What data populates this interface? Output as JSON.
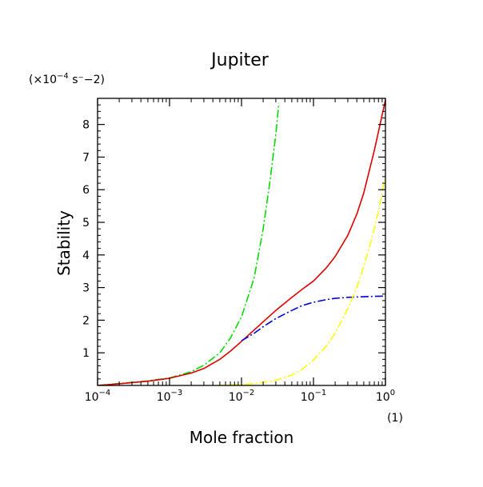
{
  "chart_data": {
    "type": "line",
    "title": "Jupiter",
    "xlabel": "Mole fraction",
    "ylabel": "Stability",
    "x_unit": "(1)",
    "y_unit": {
      "prefix": "(×10",
      "exponent": "−4",
      "suffix": " s⁻−2)"
    },
    "x_scale": "log",
    "xlim": [
      0.0001,
      1
    ],
    "ylim": [
      0,
      8.8
    ],
    "x_ticks": [
      {
        "base": "10",
        "exp": "−4",
        "value": 0.0001
      },
      {
        "base": "10",
        "exp": "−3",
        "value": 0.001
      },
      {
        "base": "10",
        "exp": "−2",
        "value": 0.01
      },
      {
        "base": "10",
        "exp": "−1",
        "value": 0.1
      },
      {
        "base": "10",
        "exp": "0",
        "value": 1
      }
    ],
    "y_ticks": [
      "1",
      "2",
      "3",
      "4",
      "5",
      "6",
      "7",
      "8"
    ],
    "grid": false,
    "series": [
      {
        "color": "#00dd00",
        "style": "dash-dot",
        "x": [
          0.0001,
          0.0002,
          0.0005,
          0.001,
          0.002,
          0.003,
          0.005,
          0.007,
          0.01,
          0.015,
          0.02,
          0.025,
          0.03,
          0.033
        ],
        "y": [
          0.0,
          0.06,
          0.14,
          0.23,
          0.42,
          0.62,
          1.0,
          1.45,
          2.1,
          3.3,
          4.8,
          6.3,
          7.7,
          8.65
        ]
      },
      {
        "color": "#dd0000",
        "style": "solid",
        "x": [
          0.0001,
          0.0002,
          0.0005,
          0.001,
          0.002,
          0.003,
          0.005,
          0.007,
          0.01,
          0.02,
          0.03,
          0.05,
          0.07,
          0.1,
          0.15,
          0.2,
          0.3,
          0.4,
          0.5,
          0.7,
          1.0
        ],
        "y": [
          0.0,
          0.05,
          0.13,
          0.22,
          0.38,
          0.52,
          0.8,
          1.05,
          1.35,
          1.95,
          2.3,
          2.7,
          2.95,
          3.2,
          3.6,
          3.95,
          4.6,
          5.25,
          5.9,
          7.2,
          8.75
        ]
      },
      {
        "color": "#0000dd",
        "style": "dash-dot",
        "x": [
          0.01,
          0.015,
          0.02,
          0.03,
          0.05,
          0.07,
          0.1,
          0.15,
          0.2,
          0.3,
          0.5,
          0.7,
          1.0
        ],
        "y": [
          1.37,
          1.6,
          1.8,
          2.05,
          2.3,
          2.45,
          2.55,
          2.63,
          2.67,
          2.7,
          2.72,
          2.73,
          2.74
        ]
      },
      {
        "color": "#ffff00",
        "style": "dash-dot",
        "x": [
          0.0045,
          0.006,
          0.01,
          0.015,
          0.02,
          0.03,
          0.05,
          0.07,
          0.1,
          0.15,
          0.2,
          0.3,
          0.4,
          0.5,
          0.6,
          0.7,
          0.8,
          0.9,
          1.0
        ],
        "y": [
          0.0,
          0.01,
          0.03,
          0.06,
          0.09,
          0.16,
          0.32,
          0.5,
          0.78,
          1.2,
          1.6,
          2.35,
          3.0,
          3.65,
          4.25,
          4.8,
          5.35,
          5.9,
          6.45
        ]
      }
    ]
  }
}
